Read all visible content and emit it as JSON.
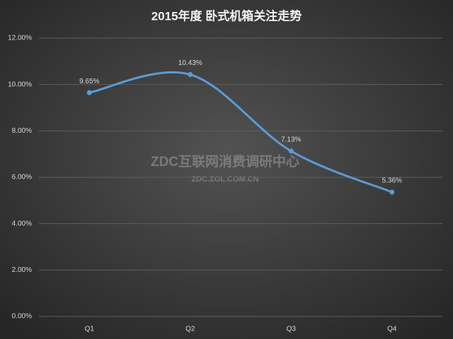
{
  "chart_data": {
    "type": "line",
    "title": "2015年度 卧式机箱关注走势",
    "categories": [
      "Q1",
      "Q2",
      "Q3",
      "Q4"
    ],
    "series": [
      {
        "name": "卧式机箱",
        "color": "#5b9bd5",
        "values": [
          9.65,
          10.43,
          7.13,
          5.36
        ],
        "value_labels": [
          "9.65%",
          "10.43%",
          "7.13%",
          "5.36%"
        ]
      }
    ],
    "ylim": [
      0,
      12
    ],
    "yticks": [
      {
        "value": 0,
        "label": "0.00%"
      },
      {
        "value": 2,
        "label": "2.00%"
      },
      {
        "value": 4,
        "label": "4.00%"
      },
      {
        "value": 6,
        "label": "6.00%"
      },
      {
        "value": 8,
        "label": "8.00%"
      },
      {
        "value": 10,
        "label": "10.00%"
      },
      {
        "value": 12,
        "label": "12.00%"
      }
    ],
    "grid": true,
    "smooth": true,
    "watermark": "ZDC互联网消费调研中心",
    "watermark_url": "ZDC.ZOL.COM.CN"
  }
}
